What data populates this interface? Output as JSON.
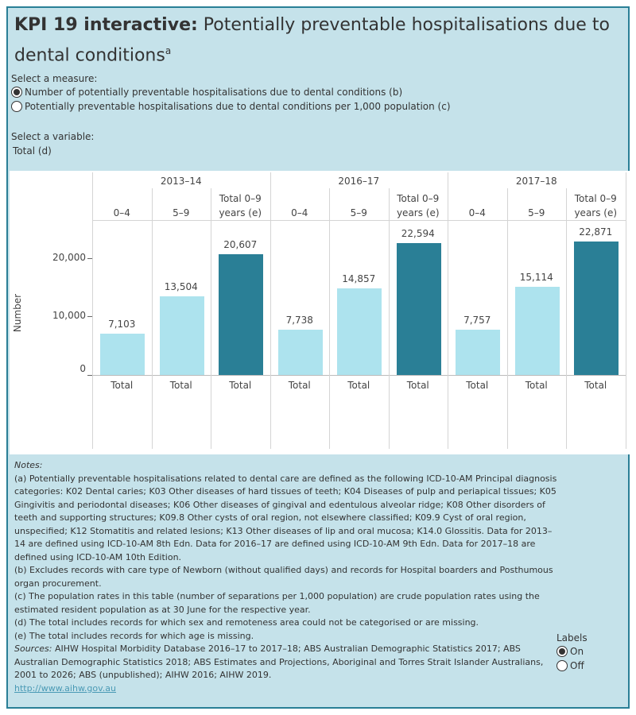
{
  "title": {
    "bold": "KPI 19 interactive:",
    "rest": "Potentially preventable hospitalisations due to dental conditions",
    "superscript": "a"
  },
  "measure": {
    "label": "Select a measure:",
    "options": [
      {
        "label": "Number of potentially preventable hospitalisations due to dental conditions (b)",
        "selected": true
      },
      {
        "label": "Potentially preventable hospitalisations due to dental conditions per 1,000 population (c)",
        "selected": false
      }
    ]
  },
  "variable": {
    "label": "Select a variable:",
    "value": "Total (d)"
  },
  "chart_data": {
    "type": "bar",
    "ylabel": "Number",
    "ylim": [
      0,
      26500
    ],
    "yticks": [
      0,
      10000,
      20000
    ],
    "ytick_labels": [
      "0",
      "10,000",
      "20,000"
    ],
    "grid": false,
    "years": [
      "2013–14",
      "2016–17",
      "2017–18"
    ],
    "age_groups": [
      "0–4",
      "5–9",
      "Total 0–9 years (e)"
    ],
    "x_row_label": "Total",
    "colors": {
      "age_band": "#ade3ee",
      "total": "#2a7f96"
    },
    "values": [
      [
        7103,
        13504,
        20607
      ],
      [
        7738,
        14857,
        22594
      ],
      [
        7757,
        15114,
        22871
      ]
    ],
    "data_labels": [
      [
        "7,103",
        "13,504",
        "20,607"
      ],
      [
        "7,738",
        "14,857",
        "22,594"
      ],
      [
        "7,757",
        "15,114",
        "22,871"
      ]
    ]
  },
  "notes": {
    "heading": "Notes:",
    "items": [
      "(a) Potentially preventable hospitalisations related to dental care are defined as the following ICD-10-AM Principal diagnosis categories: K02 Dental caries; K03 Other diseases of hard tissues of teeth; K04 Diseases of pulp and periapical tissues; K05 Gingivitis and periodontal diseases; K06 Other diseases of gingival and edentulous alveolar ridge; K08 Other disorders of teeth and supporting structures; K09.8 Other cysts of oral region, not elsewhere classified; K09.9 Cyst of oral region, unspecified; K12 Stomatitis and related lesions; K13 Other diseases of lip and oral mucosa; K14.0 Glossitis. Data for 2013–14 are defined using ICD-10-AM 8th Edn. Data for 2016–17 are defined using ICD-10-AM 9th Edn. Data for 2017–18 are defined using ICD-10-AM 10th Edition.",
      "(b) Excludes records with care type of Newborn (without qualified days) and records for Hospital boarders and Posthumous organ procurement.",
      "(c) The population rates in this table (number of separations per 1,000 population) are crude population rates using the estimated resident population as at 30 June for the respective year.",
      "(d) The total includes records for which sex and remoteness area could not be categorised or are missing.",
      "(e) The total includes records for which age is missing."
    ],
    "sources_label": "Sources:",
    "sources": "AIHW Hospital Morbidity Database 2016–17 to 2017–18; ABS Australian Demographic Statistics 2017; ABS Australian Demographic Statistics 2018; ABS Estimates and Projections, Aboriginal and Torres Strait Islander Australians, 2001 to 2026; ABS (unpublished); AIHW 2016; AIHW 2019.",
    "link": "http://www.aihw.gov.au"
  },
  "labels_toggle": {
    "label": "Labels",
    "options": [
      {
        "label": "On",
        "selected": true
      },
      {
        "label": "Off",
        "selected": false
      }
    ]
  }
}
